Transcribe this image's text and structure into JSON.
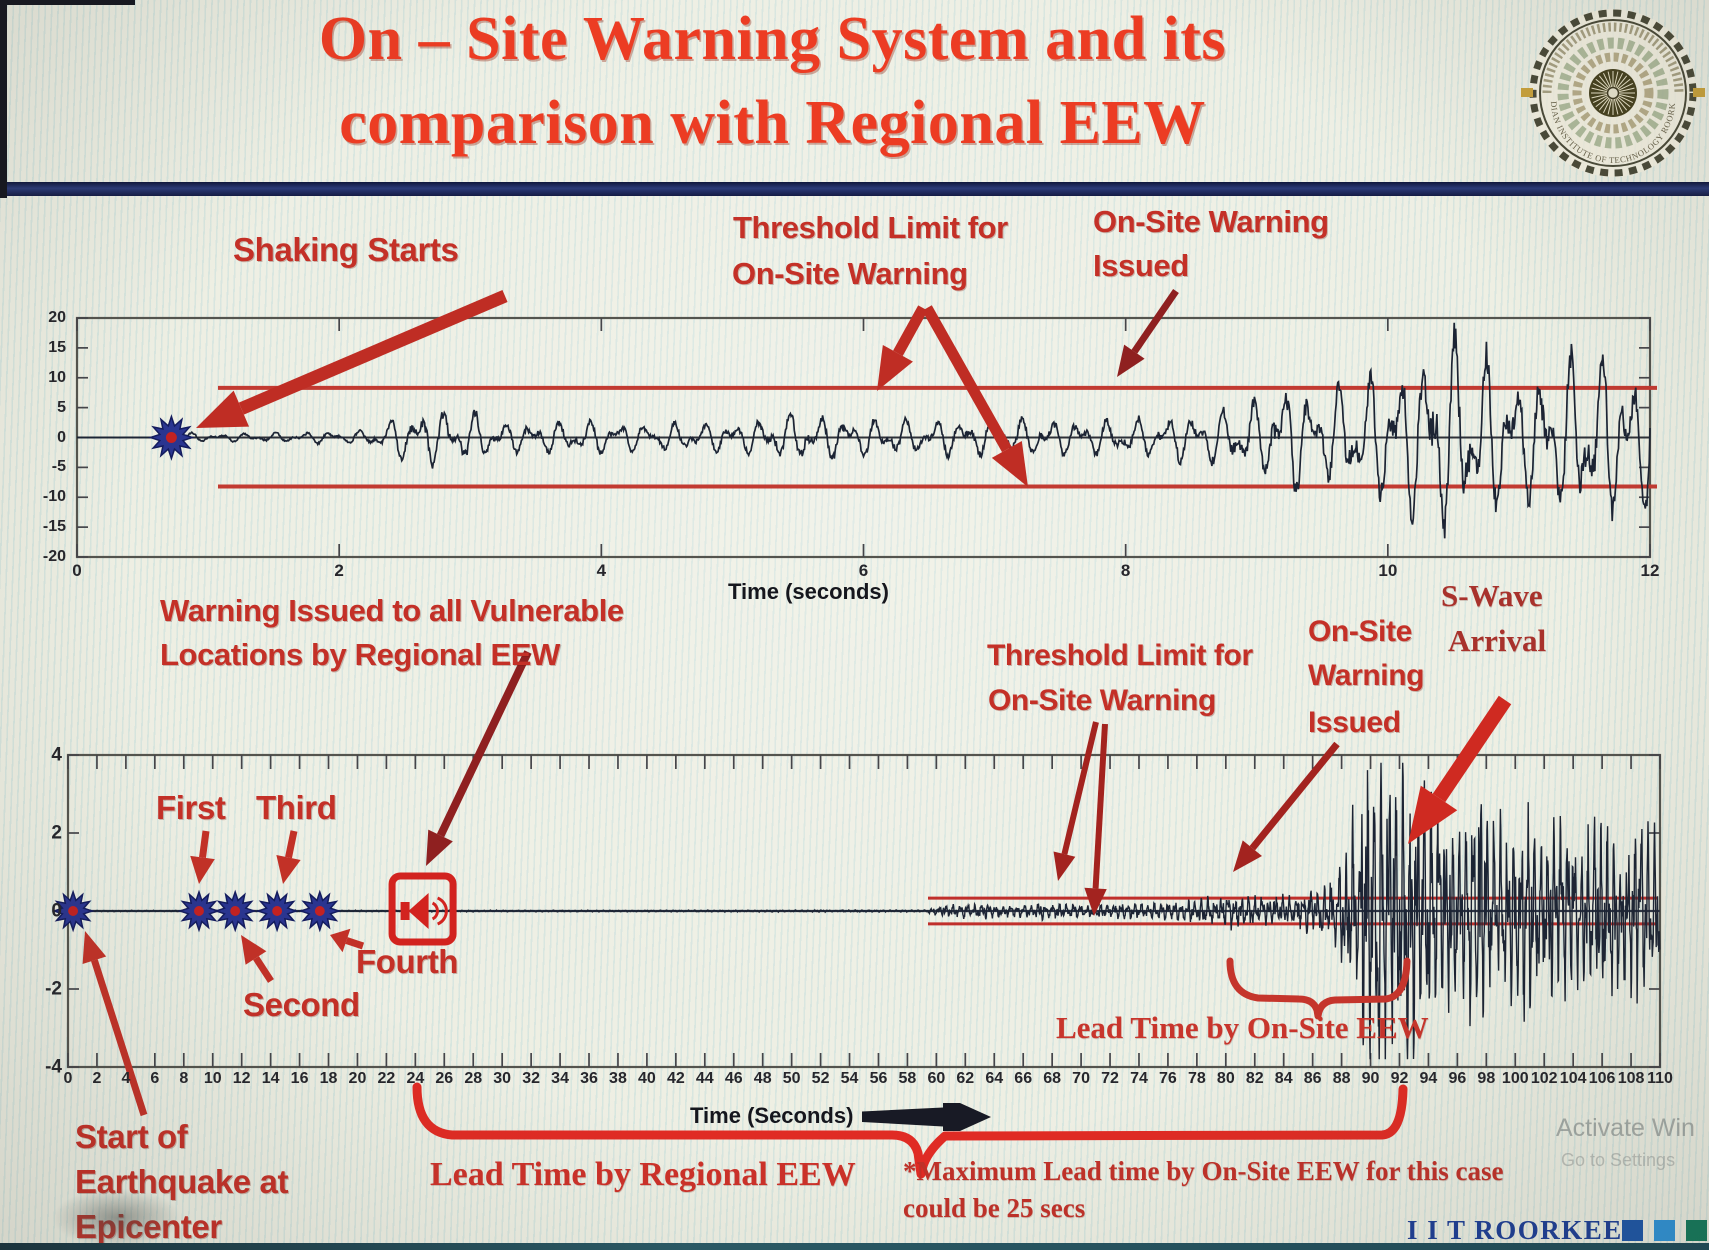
{
  "header": {
    "title_line1": "On – Site Warning System and its",
    "title_line2": "comparison with Regional EEW"
  },
  "logo": {
    "name": "IIT Roorkee seal",
    "ring_text": "INDIAN INSTITUTE OF TECHNOLOGY ROORKEE"
  },
  "footer": {
    "brand": "I I T ROORKEE",
    "brand_squares": [
      "#1c56a8",
      "#2e93d8",
      "#13795b"
    ],
    "watermark_line1": "Activate Win",
    "watermark_line2": "Go to Settings"
  },
  "colors": {
    "title_red": "#ec3c23",
    "annotation_red": "#c43027",
    "threshold_red": "#c23a31",
    "bracket_red": "#e02b24",
    "navy_bar": "#1f2a5e",
    "waveform": "#1c2434",
    "marker_navy": "#2a3590",
    "brand_navy": "#1d3e96"
  },
  "chart_data": [
    {
      "id": "onsite-warning-accelerogram",
      "type": "line",
      "xlabel": "Time (seconds)",
      "ylabel": "",
      "xlim": [
        0,
        12
      ],
      "ylim": [
        -20,
        20
      ],
      "xticks": [
        0,
        2,
        4,
        6,
        8,
        10,
        12
      ],
      "yticks": [
        20,
        15,
        10,
        5,
        0,
        -5,
        -10,
        -15,
        -20
      ],
      "grid": false,
      "legend": "none",
      "thresholds": {
        "upper": 8.3,
        "lower": -8.2
      },
      "events": [
        {
          "t": 0.72,
          "label": "Shaking Starts",
          "marker": "star"
        },
        {
          "t": 9.2,
          "label": "On-Site Warning Issued"
        }
      ],
      "annotations": {
        "shaking": "Shaking Starts",
        "threshold_line1": "Threshold Limit for",
        "threshold_line2": "On-Site Warning",
        "issued_line1": "On-Site Warning",
        "issued_line2": "Issued"
      },
      "series": [
        {
          "name": "ground acceleration",
          "color": "#1c2434",
          "envelope": [
            [
              0,
              0.02
            ],
            [
              0.68,
              0.03
            ],
            [
              0.78,
              0.9
            ],
            [
              1.0,
              0.55
            ],
            [
              1.6,
              0.8
            ],
            [
              2.2,
              1.1
            ],
            [
              2.45,
              3.2
            ],
            [
              2.7,
              4.6
            ],
            [
              3.0,
              4.2
            ],
            [
              3.3,
              2.3
            ],
            [
              3.9,
              2.7
            ],
            [
              4.5,
              2.2
            ],
            [
              5.1,
              2.5
            ],
            [
              5.5,
              4.0
            ],
            [
              5.9,
              3.2
            ],
            [
              6.4,
              2.7
            ],
            [
              7.0,
              3.0
            ],
            [
              7.6,
              2.7
            ],
            [
              8.2,
              3.1
            ],
            [
              8.7,
              4.4
            ],
            [
              9.05,
              6.2
            ],
            [
              9.25,
              8.8
            ],
            [
              9.5,
              6.8
            ],
            [
              9.8,
              9.5
            ],
            [
              10.1,
              11.5
            ],
            [
              10.45,
              16.3
            ],
            [
              10.75,
              13.5
            ],
            [
              11.05,
              9.5
            ],
            [
              11.35,
              12.5
            ],
            [
              11.6,
              14.5
            ],
            [
              11.8,
              11
            ],
            [
              12,
              12
            ]
          ],
          "synth": {
            "dt": 0.006,
            "f1": 4.6,
            "f2": 7.9,
            "jitter": 0.38,
            "seed": 20240,
            "clamp": 19.2,
            "width": 1.7
          }
        }
      ]
    },
    {
      "id": "regional-vs-onsite-eew",
      "type": "line",
      "xlabel": "Time (Seconds)",
      "ylabel": "",
      "xlim": [
        0,
        110
      ],
      "ylim": [
        -4,
        4
      ],
      "xticks": [
        0,
        2,
        4,
        6,
        8,
        10,
        12,
        14,
        16,
        18,
        20,
        22,
        24,
        26,
        28,
        30,
        32,
        34,
        36,
        38,
        40,
        42,
        44,
        46,
        48,
        50,
        52,
        54,
        56,
        58,
        60,
        62,
        64,
        66,
        68,
        70,
        72,
        74,
        76,
        78,
        80,
        82,
        84,
        86,
        88,
        90,
        92,
        94,
        96,
        98,
        100,
        102,
        104,
        106,
        108,
        110
      ],
      "yticks": [
        4,
        2,
        0,
        -2,
        -4
      ],
      "grid": false,
      "legend": "none",
      "thresholds": {
        "upper": 0.33,
        "lower": -0.33
      },
      "events": [
        {
          "t": 0.35,
          "label": "Start of Earthquake at Epicenter",
          "marker": "star"
        },
        {
          "t": 9.05,
          "label": "First",
          "marker": "star"
        },
        {
          "t": 11.55,
          "label": "Second",
          "marker": "star"
        },
        {
          "t": 14.45,
          "label": "Third",
          "marker": "star"
        },
        {
          "t": 17.4,
          "label": "Fourth",
          "marker": "star"
        },
        {
          "t": 24.5,
          "label": "Warning Issued to all Vulnerable Locations by Regional EEW",
          "marker": "alarm-box"
        },
        {
          "t": 80,
          "label": "On-Site Warning Issued"
        },
        {
          "t": 93,
          "label": "S-Wave Arrival"
        }
      ],
      "spans": [
        {
          "from": 24,
          "to": 93,
          "label": "Lead Time by Regional EEW"
        },
        {
          "from": 80.5,
          "to": 93,
          "label": "Lead Time by On-Site EEW"
        }
      ],
      "note": "*Maximum Lead time by On-Site EEW for this case could be 25 secs",
      "annotations": {
        "warning_line1": "Warning Issued to all Vulnerable",
        "warning_line2": "Locations by Regional EEW",
        "first": "First",
        "second": "Second",
        "third": "Third",
        "fourth": "Fourth",
        "threshold_line1": "Threshold Limit for",
        "threshold_line2": "On-Site Warning",
        "issued_line1": "On-Site",
        "issued_line2": "Warning",
        "issued_line3": "Issued",
        "swave_line1": "S-Wave",
        "swave_line2": "Arrival",
        "start_line1": "Start of",
        "start_line2": "Earthquake at",
        "start_line3": "Epicenter",
        "lead_onsite": "Lead Time by On-Site EEW",
        "lead_regional": "Lead Time by Regional EEW",
        "note_line1": "*Maximum Lead time by On-Site EEW for this case",
        "note_line2": "could be 25 secs"
      },
      "series": [
        {
          "name": "ground motion at site",
          "color": "#1c2434",
          "envelope": [
            [
              0,
              0.012
            ],
            [
              59.2,
              0.02
            ],
            [
              59.8,
              0.09
            ],
            [
              61,
              0.13
            ],
            [
              63,
              0.15
            ],
            [
              65,
              0.13
            ],
            [
              67,
              0.16
            ],
            [
              69,
              0.14
            ],
            [
              71,
              0.16
            ],
            [
              73,
              0.15
            ],
            [
              75,
              0.18
            ],
            [
              77,
              0.2
            ],
            [
              79,
              0.28
            ],
            [
              80.5,
              0.33
            ],
            [
              82,
              0.27
            ],
            [
              83.5,
              0.3
            ],
            [
              85,
              0.38
            ],
            [
              86.5,
              0.5
            ],
            [
              87.5,
              0.75
            ],
            [
              88.3,
              1.3
            ],
            [
              89,
              2.2
            ],
            [
              89.8,
              3.1
            ],
            [
              90.5,
              3.5
            ],
            [
              91.3,
              2.5
            ],
            [
              92.2,
              3.0
            ],
            [
              93,
              3.3
            ],
            [
              93.8,
              2.6
            ],
            [
              94.8,
              2.1
            ],
            [
              96,
              1.7
            ],
            [
              97.2,
              2.5
            ],
            [
              98.3,
              2.0
            ],
            [
              99.5,
              1.5
            ],
            [
              100.7,
              2.2
            ],
            [
              102,
              1.7
            ],
            [
              103.2,
              2.0
            ],
            [
              104.5,
              1.5
            ],
            [
              106,
              2.0
            ],
            [
              107.5,
              1.5
            ],
            [
              108.7,
              1.8
            ],
            [
              110,
              1.4
            ]
          ],
          "synth": {
            "dt": 0.03,
            "f1": 2.1,
            "f2": 4.6,
            "jitter": 1.0,
            "seed": 777,
            "clamp": 3.8,
            "width": 1.4
          }
        }
      ]
    }
  ]
}
